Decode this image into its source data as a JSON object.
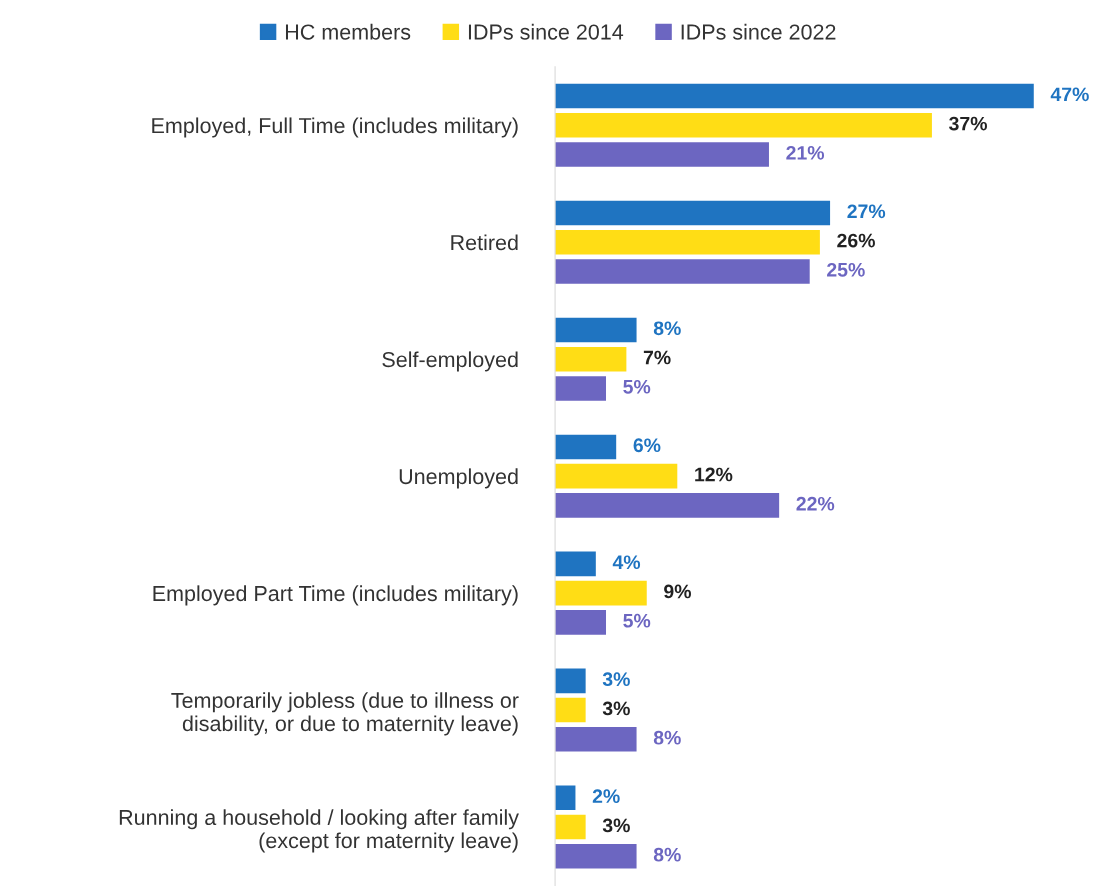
{
  "chart_data": {
    "type": "bar",
    "orientation": "horizontal",
    "legend": "top",
    "grid": false,
    "categories": [
      "Employed, Full Time (includes military)",
      "Retired",
      "Self-employed",
      "Unemployed",
      "Employed Part Time (includes military)",
      "Temporarily jobless (due to illness or\ndisability, or due to maternity leave)",
      "Running a household / looking after family\n(except for maternity leave)"
    ],
    "series": [
      {
        "name": "HC members",
        "color": "#1f74c1",
        "values": [
          47,
          27,
          8,
          6,
          4,
          3,
          2
        ],
        "value_labels": [
          "47%",
          "27%",
          "8%",
          "6%",
          "4%",
          "3%",
          "2%"
        ]
      },
      {
        "name": "IDPs since 2014",
        "color": "#ffdd15",
        "values": [
          37,
          26,
          7,
          12,
          9,
          3,
          3
        ],
        "value_labels": [
          "37%",
          "26%",
          "7%",
          "12%",
          "9%",
          "3%",
          "3%"
        ]
      },
      {
        "name": "IDPs since 2022",
        "color": "#6c66c1",
        "values": [
          21,
          25,
          5,
          22,
          5,
          8,
          8
        ],
        "value_labels": [
          "21%",
          "25%",
          "5%",
          "22%",
          "5%",
          "8%",
          "8%"
        ]
      }
    ]
  }
}
